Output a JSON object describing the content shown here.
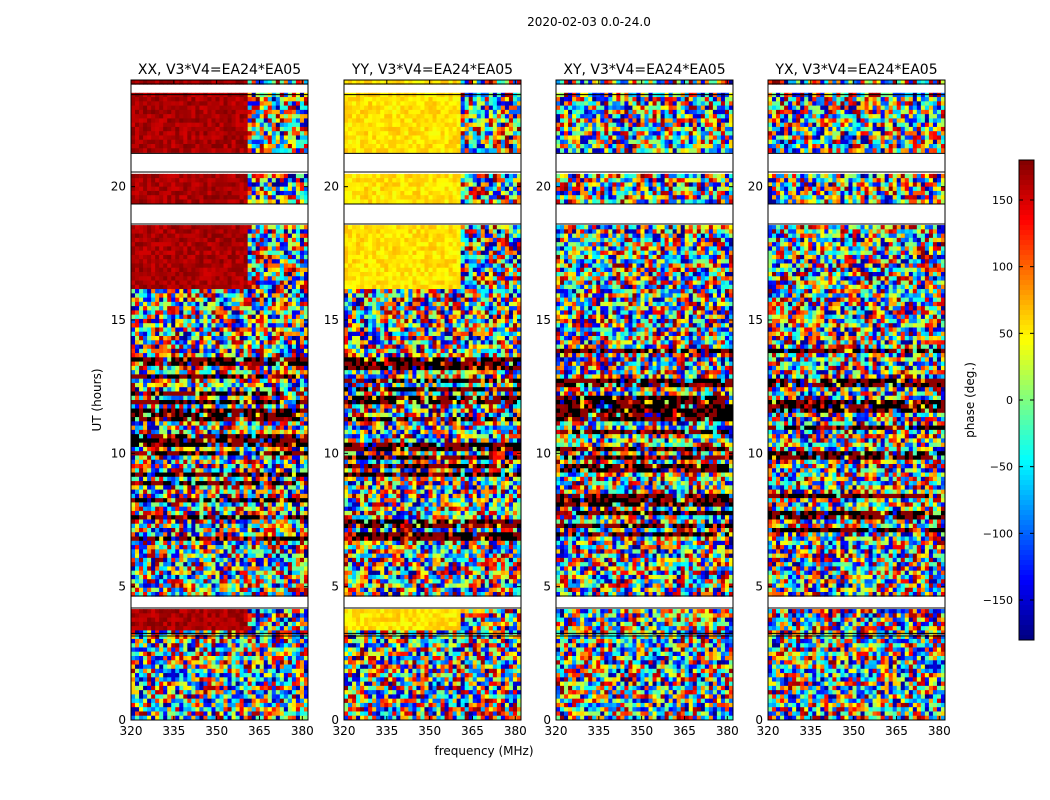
{
  "chart_data": {
    "type": "heatmap",
    "suptitle": "2020-02-03 0.0-24.0",
    "xlabel": "frequency (MHz)",
    "ylabel": "UT (hours)",
    "xlim": [
      320,
      382
    ],
    "ylim": [
      0,
      24
    ],
    "xticks": [
      320,
      335,
      350,
      365,
      380
    ],
    "yticks": [
      0,
      5,
      10,
      15,
      20
    ],
    "panels": [
      {
        "title": "XX, V3*V4=EA24*EA05",
        "pol": "XX"
      },
      {
        "title": "YY, V3*V4=EA24*EA05",
        "pol": "YY"
      },
      {
        "title": "XY, V3*V4=EA24*EA05",
        "pol": "XY"
      },
      {
        "title": "YX, V3*V4=EA24*EA05",
        "pol": "YX"
      }
    ],
    "colorbar": {
      "label": "phase (deg.)",
      "range": [
        -180,
        180
      ],
      "ticks": [
        -150,
        -100,
        -50,
        0,
        50,
        100,
        150
      ],
      "tick_labels": [
        "−150",
        "−100",
        "−50",
        "0",
        "50",
        "100",
        "150"
      ],
      "colormap": "jet"
    },
    "blank_ut_bands": [
      [
        3.15,
        3.25
      ],
      [
        4.2,
        4.65
      ],
      [
        18.6,
        19.35
      ],
      [
        20.55,
        21.25
      ],
      [
        23.45,
        23.85
      ]
    ],
    "coherent_phase_segments": [
      {
        "ut": [
          3.3,
          4.2
        ],
        "XX": 165,
        "YY": 55
      },
      {
        "ut": [
          16.1,
          18.6
        ],
        "XX": 165,
        "YY": 55
      },
      {
        "ut": [
          19.35,
          20.55
        ],
        "XX": 165,
        "YY": 55
      },
      {
        "ut": [
          21.25,
          23.45
        ],
        "XX": 165,
        "YY": 55
      },
      {
        "ut": [
          23.85,
          24.0
        ],
        "XX": 165,
        "YY": 55
      }
    ],
    "coherent_freq_limit_mhz": 361
  }
}
